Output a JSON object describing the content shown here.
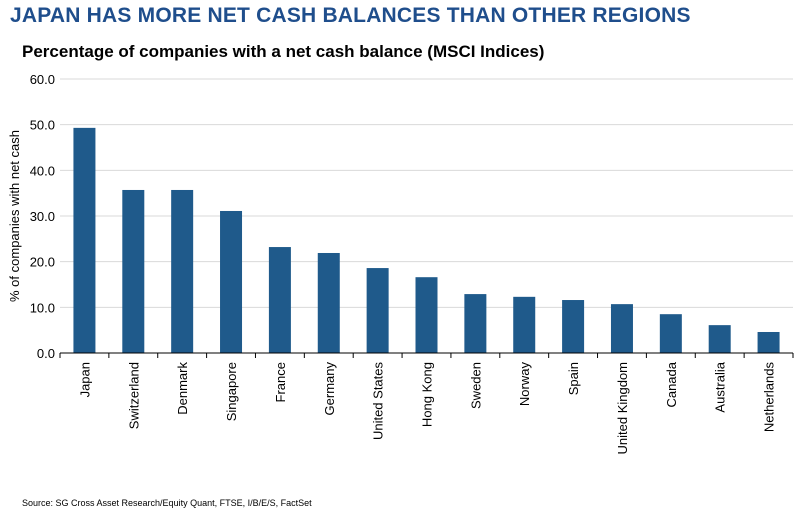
{
  "header": {
    "title": "JAPAN HAS MORE NET CASH BALANCES THAN OTHER REGIONS",
    "subtitle": "Percentage of companies with a net cash balance (MSCI Indices)",
    "source": "Source: SG Cross Asset Research/Equity Quant, FTSE, I/B/E/S, FactSet"
  },
  "chart_data": {
    "type": "bar",
    "title": "Percentage of companies with a net cash balance (MSCI Indices)",
    "xlabel": "",
    "ylabel": "% of companies with net cash",
    "ylim": [
      0,
      60
    ],
    "yticks": [
      "0.0",
      "10.0",
      "20.0",
      "30.0",
      "40.0",
      "50.0",
      "60.0"
    ],
    "grid": true,
    "color": "#1f5a8b",
    "categories": [
      "Japan",
      "Switzerland",
      "Denmark",
      "Singapore",
      "France",
      "Germany",
      "United States",
      "Hong Kong",
      "Sweden",
      "Norway",
      "Spain",
      "United Kingdom",
      "Canada",
      "Australia",
      "Netherlands"
    ],
    "values": [
      49.3,
      35.7,
      35.7,
      31.1,
      23.2,
      21.9,
      18.6,
      16.6,
      12.9,
      12.3,
      11.6,
      10.7,
      8.5,
      6.1,
      4.6
    ]
  }
}
